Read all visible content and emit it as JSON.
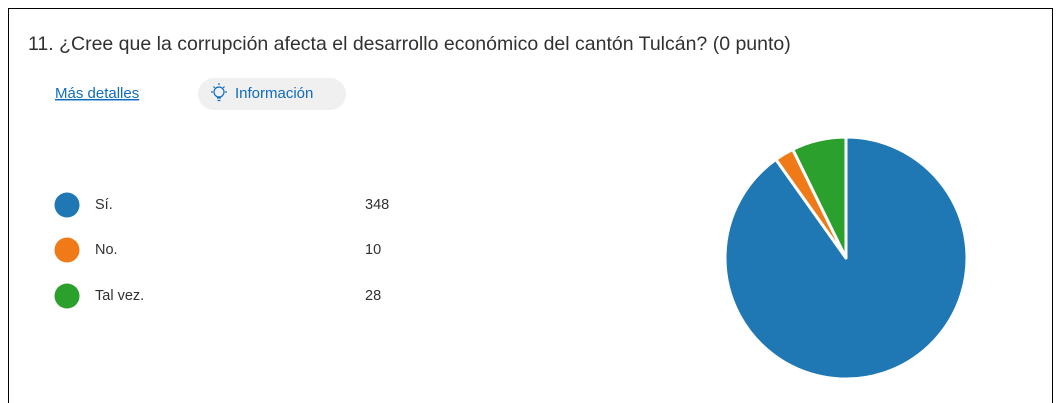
{
  "chart_data": {
    "type": "pie",
    "title": "11.  ¿Cree que la corrupción afecta el desarrollo económico del cantón Tulcán? (0 punto)",
    "categories": [
      "Sí.",
      "No.",
      "Tal vez."
    ],
    "values": [
      348,
      10,
      28
    ],
    "colors": [
      "#1f77b4",
      "#f07a17",
      "#2ca02c"
    ]
  },
  "links": {
    "details": "Más detalles",
    "info": "Información"
  }
}
